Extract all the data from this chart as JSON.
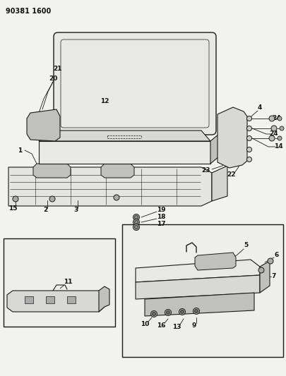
{
  "title": "90381 1600",
  "bg_color": "#f2f2ee",
  "line_color": "#1a1a1a",
  "fill_light": "#e8e8e4",
  "fill_mid": "#d8d8d4",
  "fill_dark": "#c0c0bc",
  "fig_width": 4.06,
  "fig_height": 5.33,
  "dpi": 100
}
